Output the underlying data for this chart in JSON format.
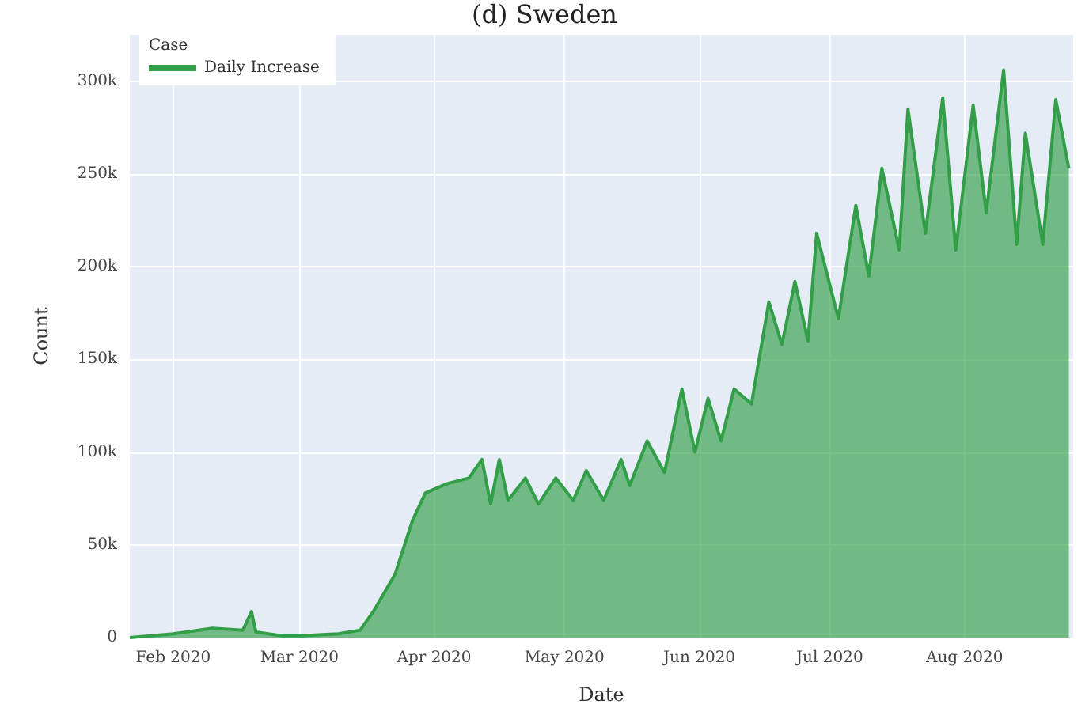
{
  "chart_data": {
    "type": "area",
    "title": "(d) Sweden",
    "xlabel": "Date",
    "ylabel": "Count",
    "legend_title": "Case",
    "legend": "top left",
    "grid": true,
    "xlim": [
      "2020-01-22",
      "2020-08-26"
    ],
    "xticks": [
      {
        "value": "2020-02-01",
        "label": "Feb 2020"
      },
      {
        "value": "2020-03-01",
        "label": "Mar 2020"
      },
      {
        "value": "2020-04-01",
        "label": "Apr 2020"
      },
      {
        "value": "2020-05-01",
        "label": "May 2020"
      },
      {
        "value": "2020-06-01",
        "label": "Jun 2020"
      },
      {
        "value": "2020-07-01",
        "label": "Jul 2020"
      },
      {
        "value": "2020-08-01",
        "label": "Aug 2020"
      }
    ],
    "ylim": [
      0,
      325000
    ],
    "yticks": [
      0,
      {
        "value": 50000,
        "label": "50k"
      },
      {
        "value": 100000,
        "label": "100k"
      },
      {
        "value": 150000,
        "label": "150k"
      },
      {
        "value": 200000,
        "label": "200k"
      },
      {
        "value": 250000,
        "label": "250k"
      },
      {
        "value": 300000,
        "label": "300k"
      }
    ],
    "series": [
      {
        "name": "Daily Increase",
        "color": "#339e48",
        "x": [
          "2020-01-22",
          "2020-02-01",
          "2020-02-10",
          "2020-02-17",
          "2020-02-19",
          "2020-02-20",
          "2020-02-26",
          "2020-03-01",
          "2020-03-10",
          "2020-03-15",
          "2020-03-18",
          "2020-03-23",
          "2020-03-27",
          "2020-03-30",
          "2020-04-04",
          "2020-04-09",
          "2020-04-12",
          "2020-04-14",
          "2020-04-16",
          "2020-04-18",
          "2020-04-22",
          "2020-04-25",
          "2020-04-29",
          "2020-05-03",
          "2020-05-06",
          "2020-05-10",
          "2020-05-14",
          "2020-05-16",
          "2020-05-20",
          "2020-05-24",
          "2020-05-28",
          "2020-05-31",
          "2020-06-03",
          "2020-06-06",
          "2020-06-09",
          "2020-06-13",
          "2020-06-17",
          "2020-06-20",
          "2020-06-23",
          "2020-06-26",
          "2020-06-28",
          "2020-07-03",
          "2020-07-07",
          "2020-07-10",
          "2020-07-13",
          "2020-07-17",
          "2020-07-19",
          "2020-07-23",
          "2020-07-27",
          "2020-07-30",
          "2020-08-03",
          "2020-08-06",
          "2020-08-10",
          "2020-08-13",
          "2020-08-15",
          "2020-08-19",
          "2020-08-22",
          "2020-08-25"
        ],
        "values": [
          0,
          2000,
          5000,
          4000,
          14000,
          3000,
          1000,
          1000,
          2000,
          4000,
          14000,
          34000,
          63000,
          78000,
          83000,
          86000,
          96000,
          72000,
          96000,
          74000,
          86000,
          72000,
          86000,
          74000,
          90000,
          74000,
          96000,
          82000,
          106000,
          89000,
          134000,
          100000,
          129000,
          106000,
          134000,
          126000,
          181000,
          158000,
          192000,
          160000,
          218000,
          172000,
          233000,
          195000,
          253000,
          209000,
          285000,
          218000,
          291000,
          209000,
          287000,
          229000,
          306000,
          212000,
          272000,
          212000,
          290000,
          253000
        ]
      }
    ]
  }
}
